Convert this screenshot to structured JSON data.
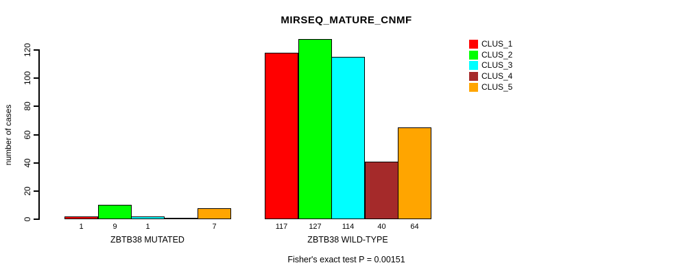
{
  "chart_data": {
    "type": "bar",
    "title": "MIRSEQ_MATURE_CNMF",
    "ylabel": "number of cases",
    "footer": "Fisher's exact test P = 0.00151",
    "categories": [
      "ZBTB38 MUTATED",
      "ZBTB38 WILD-TYPE"
    ],
    "series": [
      {
        "name": "CLUS_1",
        "color": "#FF0000",
        "values": [
          1,
          117
        ]
      },
      {
        "name": "CLUS_2",
        "color": "#00FF00",
        "values": [
          9,
          127
        ]
      },
      {
        "name": "CLUS_3",
        "color": "#00FFFF",
        "values": [
          1,
          114
        ]
      },
      {
        "name": "CLUS_4",
        "color": "#A52A2A",
        "values": [
          0,
          40
        ]
      },
      {
        "name": "CLUS_5",
        "color": "#FFA500",
        "values": [
          7,
          64
        ]
      }
    ],
    "yticks": [
      0,
      20,
      40,
      60,
      80,
      100,
      120
    ],
    "ylim": [
      0,
      130
    ],
    "grid": false,
    "legend_position": "top-right",
    "bar_labels_show_zero": false,
    "axis_color": "#000000",
    "background": "#FFFFFF"
  }
}
